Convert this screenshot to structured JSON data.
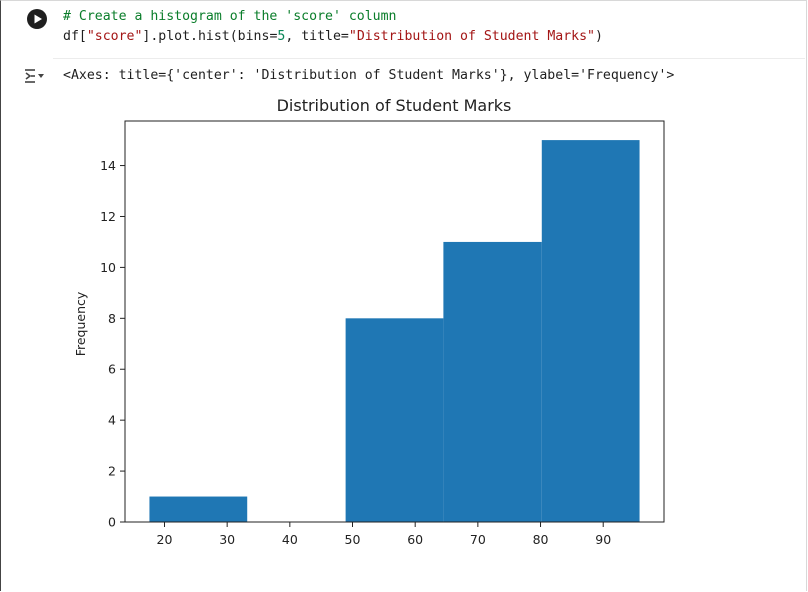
{
  "cell": {
    "code_lines": [
      {
        "tokens": [
          {
            "t": "# Create a histogram of the 'score' column",
            "c": "comment"
          }
        ]
      },
      {
        "tokens": [
          {
            "t": "df[",
            "c": "plain"
          },
          {
            "t": "\"score\"",
            "c": "string"
          },
          {
            "t": "].plot.hist(bins=",
            "c": "plain"
          },
          {
            "t": "5",
            "c": "num"
          },
          {
            "t": ", title=",
            "c": "plain"
          },
          {
            "t": "\"Distribution of Student Marks\"",
            "c": "string"
          },
          {
            "t": ")",
            "c": "plain"
          }
        ]
      }
    ],
    "output_repr": "<Axes: title={'center': 'Distribution of Student Marks'}, ylabel='Frequency'>"
  },
  "icons": {
    "run": "play-icon",
    "output_toggle": "output-collapse-icon"
  },
  "colors": {
    "bar": "#1f77b4",
    "comment": "#0a7d2a",
    "string": "#a31515",
    "number": "#098658"
  },
  "chart_data": {
    "type": "bar",
    "title": "Distribution of Student Marks",
    "xlabel": "",
    "ylabel": "Frequency",
    "bins": [
      {
        "x0": 17.6,
        "x1": 33.2,
        "count": 1
      },
      {
        "x0": 33.2,
        "x1": 48.9,
        "count": 0
      },
      {
        "x0": 48.9,
        "x1": 64.5,
        "count": 8
      },
      {
        "x0": 64.5,
        "x1": 80.2,
        "count": 11
      },
      {
        "x0": 80.2,
        "x1": 95.8,
        "count": 15
      }
    ],
    "xlim": [
      13.7,
      99.7
    ],
    "ylim": [
      0,
      15.75
    ],
    "xticks": [
      20,
      30,
      40,
      50,
      60,
      70,
      80,
      90
    ],
    "yticks": [
      0,
      2,
      4,
      6,
      8,
      10,
      12,
      14
    ],
    "grid": false
  }
}
